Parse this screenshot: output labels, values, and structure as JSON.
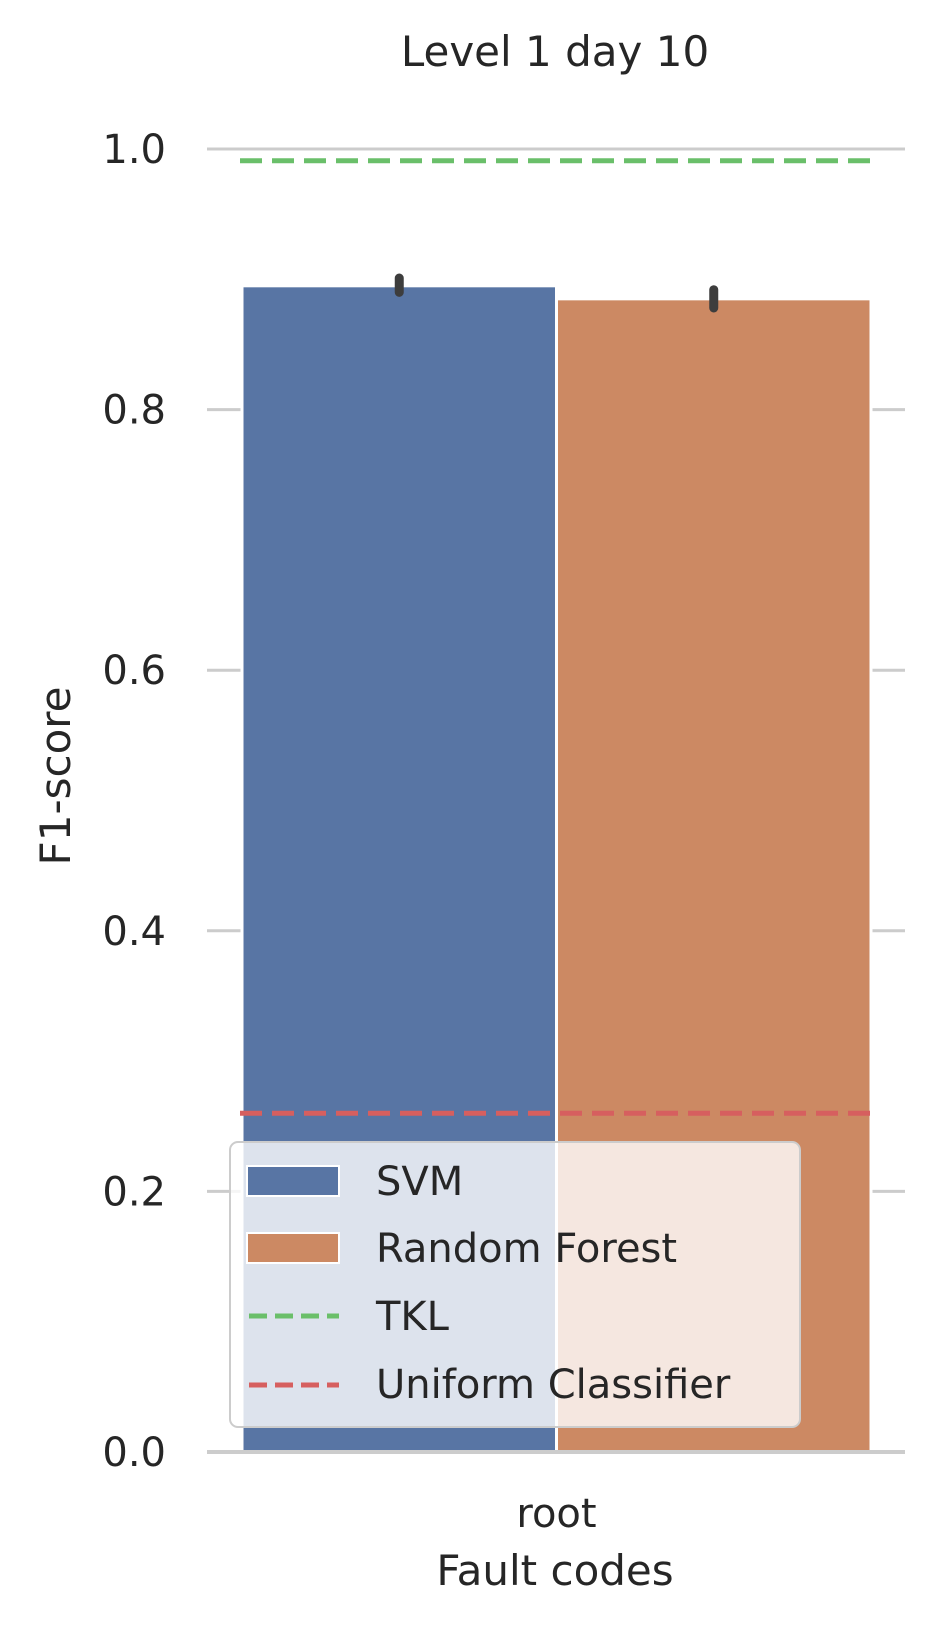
{
  "chart_data": {
    "type": "bar",
    "title": "Level 1 day 10",
    "xlabel": "Fault codes",
    "ylabel": "F1-score",
    "categories": [
      "root"
    ],
    "series": [
      {
        "name": "SVM",
        "values": [
          0.895
        ],
        "error": [
          [
            0.89,
            0.901
          ]
        ],
        "color": "#5875a4"
      },
      {
        "name": "Random Forest",
        "values": [
          0.885
        ],
        "error": [
          [
            0.878,
            0.892
          ]
        ],
        "color": "#cc8963"
      }
    ],
    "reference_lines": [
      {
        "name": "TKL",
        "value": 0.991,
        "color": "#6abf6a",
        "style": "dashed"
      },
      {
        "name": "Uniform Classifier",
        "value": 0.26,
        "color": "#d65f5f",
        "style": "dashed"
      }
    ],
    "ylim": [
      0,
      1.0
    ],
    "yticks": [
      "0.0",
      "0.2",
      "0.4",
      "0.6",
      "0.8",
      "1.0"
    ],
    "ytick_values": [
      0,
      0.2,
      0.4,
      0.6,
      0.8,
      1.0
    ],
    "grid": "horizontal",
    "legend_position": "lower-left",
    "legend": [
      "SVM",
      "Random Forest",
      "TKL",
      "Uniform Classifier"
    ]
  }
}
